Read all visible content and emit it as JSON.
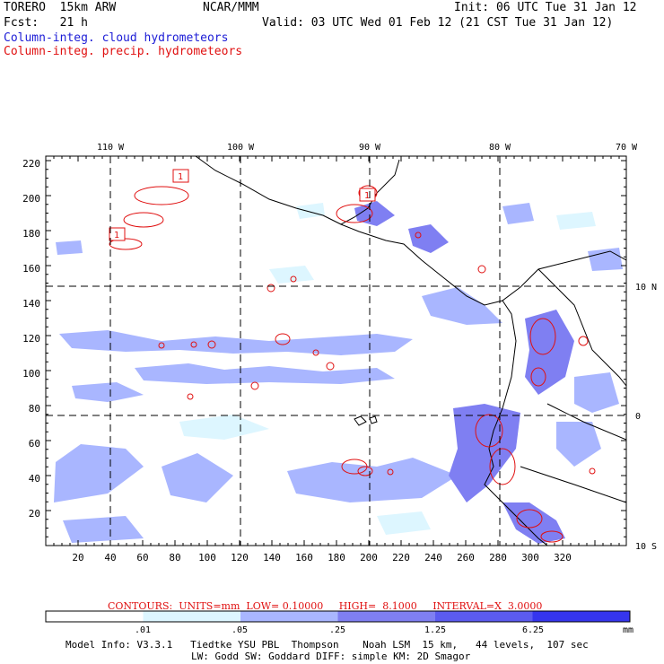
{
  "header": {
    "model": "TORERO  15km ARW",
    "center": "NCAR/MMM",
    "init": "Init: 06 UTC Tue 31 Jan 12",
    "fcst": "Fcst:   21 h",
    "valid": "Valid: 03 UTC Wed 01 Feb 12 (21 CST Tue 31 Jan 12)",
    "field1": "Column-integ. cloud hydrometeors",
    "field2": "Column-integ. precip. hydrometeors"
  },
  "colors": {
    "cloud_text": "#1c1cd6",
    "precip_text": "#e01010",
    "contour": "#e01010"
  },
  "map": {
    "lon_labels": [
      "110 W",
      "100 W",
      "90 W",
      "80 W",
      "70 W"
    ],
    "lat_labels": [
      "10 N",
      "0",
      "10 S"
    ],
    "y_ticks": [
      "20",
      "40",
      "60",
      "80",
      "100",
      "120",
      "140",
      "160",
      "180",
      "200",
      "220"
    ],
    "x_ticks": [
      "20",
      "40",
      "60",
      "80",
      "100",
      "120",
      "140",
      "160",
      "180",
      "200",
      "220",
      "240",
      "260",
      "280",
      "300",
      "320"
    ],
    "contour_labels": [
      "1",
      "1",
      "1"
    ]
  },
  "contours_line": "CONTOURS:  UNITS=mm  LOW= 0.10000     HIGH=  8.1000     INTERVAL=X  3.0000",
  "legend": {
    "thresholds": [
      ".01",
      ".05",
      ".25",
      "1.25",
      "6.25"
    ],
    "unit": "mm",
    "colors": [
      "#ffffff",
      "#ddf6ff",
      "#a9b6ff",
      "#7f7ff2",
      "#5b5bf0",
      "#3535ee"
    ]
  },
  "info": {
    "line1": "Model Info: V3.3.1   Tiedtke YSU PBL  Thompson    Noah LSM  15 km,   44 levels,  107 sec",
    "line2": "LW: Godd SW: Goddard DIFF: simple KM: 2D Smagor"
  }
}
